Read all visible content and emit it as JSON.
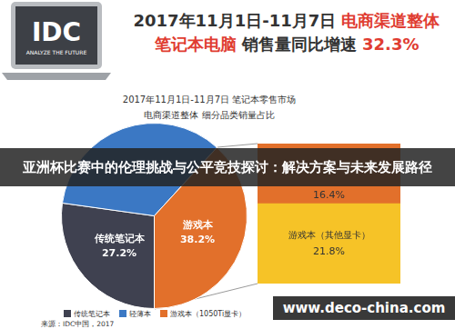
{
  "header": {
    "logo": "IDC",
    "tagline": "ANALYZE THE FUTURE",
    "title_lines": [
      [
        {
          "text": "2017年11月1日-11月7日 ",
          "highlight": false
        },
        {
          "text": "电商渠道整体",
          "highlight": true
        }
      ],
      [
        {
          "text": "笔记本电脑",
          "highlight": true
        },
        {
          "text": " 销售量同比增速 ",
          "highlight": false
        },
        {
          "text": "32.3%",
          "highlight": true
        }
      ]
    ]
  },
  "chart_data": [
    {
      "type": "pie",
      "title": "2017年11月1日-11月7日 笔记本零售市场",
      "subtitle": "电商渠道整体 细分品类销量占比",
      "categories": [
        "传统笔记本",
        "轻薄本",
        "游戏本"
      ],
      "values": [
        27.2,
        34.6,
        38.2
      ],
      "colors": [
        "#3f4150",
        "#3b78c4",
        "#e2702b"
      ],
      "data_labels": true,
      "value_labels": [
        "27.2%",
        null,
        "38.2%"
      ]
    },
    {
      "type": "bar",
      "stacked": true,
      "categories": [
        null
      ],
      "series": [
        {
          "name": "游戏本（其他显卡）",
          "color": "#f6c327",
          "values": [
            21.8
          ],
          "value_labels": [
            "21.8%"
          ]
        },
        {
          "name": "游戏本（1050Ti显卡）",
          "color": "#e2702b",
          "values": [
            16.4
          ],
          "value_labels": [
            "16.4%"
          ]
        }
      ],
      "ylim": [
        0,
        38.2
      ],
      "tick_labels": false,
      "data_labels": true
    }
  ],
  "legend": {
    "position": "bottom",
    "items": [
      {
        "name": "传统笔记本",
        "color": "#3f4150"
      },
      {
        "name": "轻薄本",
        "color": "#3b78c4"
      },
      {
        "name": "游戏本（1050Ti显卡）",
        "color": "#e2702b"
      }
    ]
  },
  "banner": "亚洲杯比赛中的伦理挑战与公平竞技探讨：解决方案与未来发展路径",
  "watermark": "www.deco-china.com",
  "source": "来源：IDC中国，2017"
}
